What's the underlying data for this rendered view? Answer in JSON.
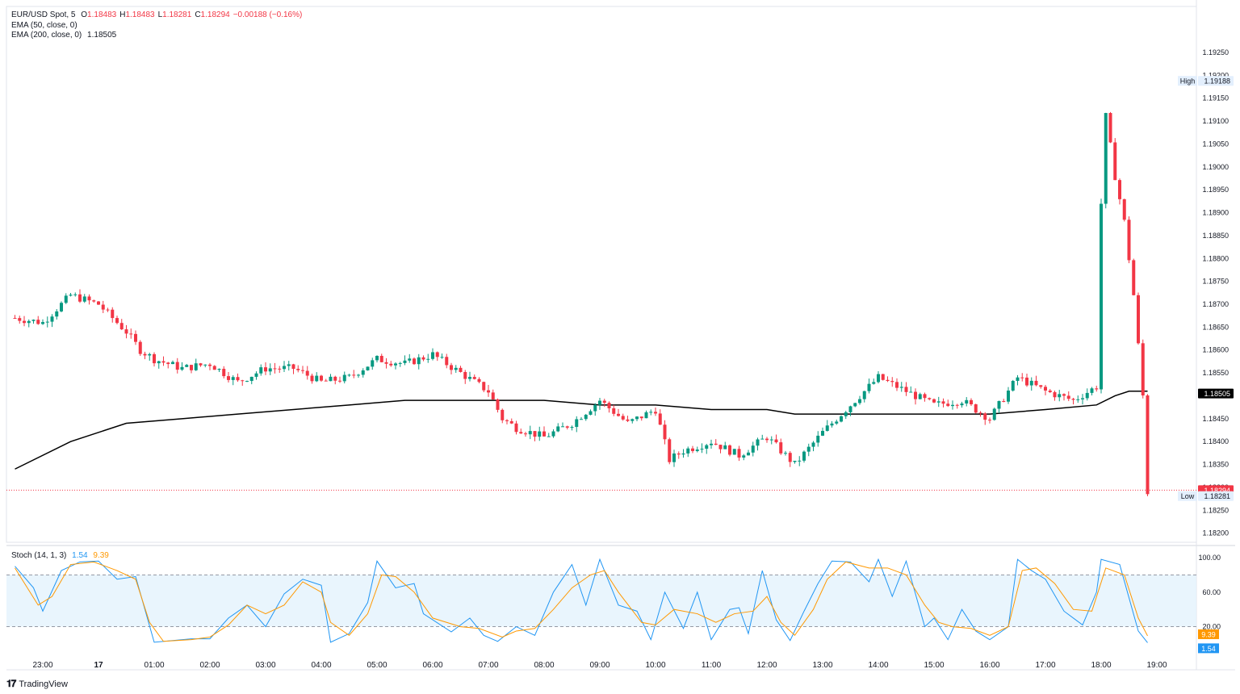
{
  "legend": {
    "symbol": "EUR/USD Spot, 5",
    "open_label": "O",
    "open": "1.18483",
    "high_label": "H",
    "high": "1.18483",
    "low_label": "L",
    "low": "1.18281",
    "close_label": "C",
    "close": "1.18294",
    "change": "−0.00188 (−0.16%)",
    "ema50": "EMA (50, close, 0)",
    "ema200": "EMA (200, close, 0)",
    "ema200_value": "1.18505",
    "stoch": "Stoch (14, 1, 3)",
    "stoch_k": "1.54",
    "stoch_d": "9.39"
  },
  "badges": {
    "high_label": "High",
    "high_value": "1.19188",
    "low_label": "Low",
    "low_value": "1.18281",
    "ema_value": "1.18505",
    "last_price": "1.18294",
    "stoch_d_value": "9.39",
    "stoch_k_value": "1.54"
  },
  "brand": {
    "name": "TradingView"
  },
  "colors": {
    "up": "#089981",
    "down": "#f23645",
    "ema200": "#000000",
    "stoch_k": "#2196f3",
    "stoch_d": "#ff9800",
    "band_fill": "#e3f2fd"
  },
  "chart_data": [
    {
      "type": "candlestick",
      "title": "EUR/USD Spot, 5",
      "x_ticks": [
        "23:00",
        "17",
        "01:00",
        "02:00",
        "03:00",
        "04:00",
        "05:00",
        "06:00",
        "07:00",
        "08:00",
        "09:00",
        "10:00",
        "11:00",
        "12:00",
        "13:00",
        "14:00",
        "15:00",
        "16:00",
        "17:00",
        "18:00",
        "19:00"
      ],
      "y_ticks": [
        1.1925,
        1.192,
        1.1915,
        1.191,
        1.1905,
        1.19,
        1.1895,
        1.189,
        1.1885,
        1.188,
        1.1875,
        1.187,
        1.1865,
        1.186,
        1.1855,
        1.185,
        1.1845,
        1.184,
        1.1835,
        1.183,
        1.1825,
        1.182
      ],
      "ylim": [
        1.1818,
        1.1928
      ],
      "price_path": [
        [
          "22:30",
          1.1867
        ],
        [
          "23:00",
          1.1866
        ],
        [
          "23:30",
          1.1872
        ],
        [
          "00:00",
          1.187
        ],
        [
          "00:30",
          1.1864
        ],
        [
          "00:45",
          1.186
        ],
        [
          "01:00",
          1.1858
        ],
        [
          "01:30",
          1.1856
        ],
        [
          "02:00",
          1.1857
        ],
        [
          "02:30",
          1.1853
        ],
        [
          "03:00",
          1.1856
        ],
        [
          "03:30",
          1.1856
        ],
        [
          "04:00",
          1.1853
        ],
        [
          "04:30",
          1.1854
        ],
        [
          "05:00",
          1.1858
        ],
        [
          "05:30",
          1.1857
        ],
        [
          "06:00",
          1.1859
        ],
        [
          "06:30",
          1.1855
        ],
        [
          "07:00",
          1.1851
        ],
        [
          "07:15",
          1.1845
        ],
        [
          "07:30",
          1.1843
        ],
        [
          "08:00",
          1.1841
        ],
        [
          "08:30",
          1.1844
        ],
        [
          "09:00",
          1.1849
        ],
        [
          "09:30",
          1.1844
        ],
        [
          "10:00",
          1.1847
        ],
        [
          "10:15",
          1.1836
        ],
        [
          "10:30",
          1.1838
        ],
        [
          "11:00",
          1.184
        ],
        [
          "11:30",
          1.1837
        ],
        [
          "12:00",
          1.1841
        ],
        [
          "12:30",
          1.1835
        ],
        [
          "13:00",
          1.1842
        ],
        [
          "13:30",
          1.1848
        ],
        [
          "14:00",
          1.1854
        ],
        [
          "14:30",
          1.1851
        ],
        [
          "15:00",
          1.1848
        ],
        [
          "15:30",
          1.1849
        ],
        [
          "16:00",
          1.1845
        ],
        [
          "16:30",
          1.1854
        ],
        [
          "17:00",
          1.1851
        ],
        [
          "17:30",
          1.1849
        ],
        [
          "17:55",
          1.1852
        ],
        [
          "18:00",
          1.1892
        ],
        [
          "18:05",
          1.1911
        ],
        [
          "18:15",
          1.1898
        ],
        [
          "18:25",
          1.1888
        ],
        [
          "18:35",
          1.1872
        ],
        [
          "18:45",
          1.185
        ],
        [
          "18:50",
          1.1829
        ]
      ],
      "ema200": [
        [
          "22:30",
          1.1834
        ],
        [
          "23:30",
          1.184
        ],
        [
          "00:30",
          1.1844
        ],
        [
          "01:30",
          1.1845
        ],
        [
          "02:30",
          1.1846
        ],
        [
          "03:30",
          1.1847
        ],
        [
          "04:30",
          1.1848
        ],
        [
          "05:30",
          1.1849
        ],
        [
          "06:30",
          1.1849
        ],
        [
          "07:00",
          1.1849
        ],
        [
          "08:00",
          1.1849
        ],
        [
          "09:00",
          1.1848
        ],
        [
          "10:00",
          1.1848
        ],
        [
          "11:00",
          1.1847
        ],
        [
          "12:00",
          1.1847
        ],
        [
          "12:30",
          1.1846
        ],
        [
          "13:00",
          1.1846
        ],
        [
          "14:00",
          1.1846
        ],
        [
          "15:00",
          1.1846
        ],
        [
          "16:00",
          1.1846
        ],
        [
          "17:00",
          1.1847
        ],
        [
          "17:55",
          1.1848
        ],
        [
          "18:15",
          1.185
        ],
        [
          "18:30",
          1.1851
        ],
        [
          "18:50",
          1.1851
        ]
      ],
      "high": 1.19188,
      "low": 1.18281,
      "last": 1.18294,
      "ema200_last": 1.18505
    },
    {
      "type": "line",
      "title": "Stoch (14, 1, 3)",
      "y_ticks": [
        100,
        60,
        20
      ],
      "ylim": [
        0,
        100
      ],
      "bands": [
        20,
        80
      ],
      "series": [
        {
          "name": "%K",
          "values": [
            [
              "22:30",
              90
            ],
            [
              "22:50",
              65
            ],
            [
              "23:00",
              38
            ],
            [
              "23:20",
              85
            ],
            [
              "23:40",
              95
            ],
            [
              "00:00",
              96
            ],
            [
              "00:20",
              75
            ],
            [
              "00:40",
              78
            ],
            [
              "00:50",
              40
            ],
            [
              "01:00",
              2
            ],
            [
              "01:20",
              4
            ],
            [
              "01:40",
              6
            ],
            [
              "02:00",
              6
            ],
            [
              "02:20",
              30
            ],
            [
              "02:40",
              45
            ],
            [
              "03:00",
              20
            ],
            [
              "03:20",
              58
            ],
            [
              "03:40",
              75
            ],
            [
              "04:00",
              68
            ],
            [
              "04:10",
              2
            ],
            [
              "04:30",
              12
            ],
            [
              "04:50",
              48
            ],
            [
              "05:00",
              96
            ],
            [
              "05:20",
              65
            ],
            [
              "05:40",
              70
            ],
            [
              "05:50",
              35
            ],
            [
              "06:20",
              14
            ],
            [
              "06:40",
              30
            ],
            [
              "06:55",
              10
            ],
            [
              "07:10",
              3
            ],
            [
              "07:30",
              20
            ],
            [
              "07:50",
              10
            ],
            [
              "08:10",
              60
            ],
            [
              "08:30",
              92
            ],
            [
              "08:45",
              45
            ],
            [
              "09:00",
              98
            ],
            [
              "09:20",
              45
            ],
            [
              "09:40",
              38
            ],
            [
              "09:55",
              5
            ],
            [
              "10:10",
              60
            ],
            [
              "10:30",
              18
            ],
            [
              "10:45",
              60
            ],
            [
              "11:00",
              5
            ],
            [
              "11:20",
              40
            ],
            [
              "11:30",
              42
            ],
            [
              "11:40",
              12
            ],
            [
              "11:55",
              85
            ],
            [
              "12:10",
              28
            ],
            [
              "12:25",
              4
            ],
            [
              "12:40",
              38
            ],
            [
              "12:55",
              70
            ],
            [
              "13:10",
              96
            ],
            [
              "13:30",
              95
            ],
            [
              "13:50",
              72
            ],
            [
              "14:00",
              98
            ],
            [
              "14:15",
              55
            ],
            [
              "14:30",
              96
            ],
            [
              "14:50",
              20
            ],
            [
              "15:00",
              30
            ],
            [
              "15:15",
              5
            ],
            [
              "15:30",
              40
            ],
            [
              "15:45",
              15
            ],
            [
              "16:00",
              5
            ],
            [
              "16:20",
              20
            ],
            [
              "16:30",
              98
            ],
            [
              "16:45",
              85
            ],
            [
              "17:00",
              75
            ],
            [
              "17:20",
              38
            ],
            [
              "17:40",
              22
            ],
            [
              "17:55",
              60
            ],
            [
              "18:00",
              98
            ],
            [
              "18:20",
              92
            ],
            [
              "18:40",
              15
            ],
            [
              "18:50",
              1.5
            ]
          ]
        },
        {
          "name": "%D",
          "values": [
            [
              "22:30",
              88
            ],
            [
              "22:55",
              45
            ],
            [
              "23:10",
              55
            ],
            [
              "23:30",
              92
            ],
            [
              "23:55",
              95
            ],
            [
              "00:20",
              85
            ],
            [
              "00:40",
              75
            ],
            [
              "00:55",
              25
            ],
            [
              "01:10",
              3
            ],
            [
              "01:40",
              5
            ],
            [
              "02:00",
              8
            ],
            [
              "02:20",
              22
            ],
            [
              "02:40",
              45
            ],
            [
              "03:00",
              35
            ],
            [
              "03:20",
              45
            ],
            [
              "03:40",
              72
            ],
            [
              "04:00",
              60
            ],
            [
              "04:10",
              25
            ],
            [
              "04:30",
              10
            ],
            [
              "04:50",
              35
            ],
            [
              "05:05",
              80
            ],
            [
              "05:20",
              78
            ],
            [
              "05:40",
              60
            ],
            [
              "06:00",
              30
            ],
            [
              "06:30",
              20
            ],
            [
              "06:50",
              18
            ],
            [
              "07:15",
              8
            ],
            [
              "07:30",
              15
            ],
            [
              "07:50",
              18
            ],
            [
              "08:10",
              40
            ],
            [
              "08:30",
              65
            ],
            [
              "08:50",
              80
            ],
            [
              "09:05",
              85
            ],
            [
              "09:20",
              60
            ],
            [
              "09:45",
              25
            ],
            [
              "10:00",
              22
            ],
            [
              "10:20",
              40
            ],
            [
              "10:45",
              35
            ],
            [
              "11:05",
              25
            ],
            [
              "11:25",
              35
            ],
            [
              "11:45",
              38
            ],
            [
              "12:00",
              55
            ],
            [
              "12:15",
              25
            ],
            [
              "12:30",
              10
            ],
            [
              "12:50",
              40
            ],
            [
              "13:05",
              75
            ],
            [
              "13:25",
              95
            ],
            [
              "13:50",
              88
            ],
            [
              "14:10",
              88
            ],
            [
              "14:30",
              80
            ],
            [
              "14:50",
              45
            ],
            [
              "15:05",
              25
            ],
            [
              "15:20",
              20
            ],
            [
              "15:40",
              18
            ],
            [
              "16:00",
              10
            ],
            [
              "16:20",
              20
            ],
            [
              "16:35",
              85
            ],
            [
              "16:50",
              88
            ],
            [
              "17:10",
              70
            ],
            [
              "17:30",
              40
            ],
            [
              "17:50",
              38
            ],
            [
              "18:05",
              88
            ],
            [
              "18:25",
              80
            ],
            [
              "18:40",
              30
            ],
            [
              "18:50",
              9.39
            ]
          ]
        }
      ],
      "last_k": 1.54,
      "last_d": 9.39
    }
  ]
}
